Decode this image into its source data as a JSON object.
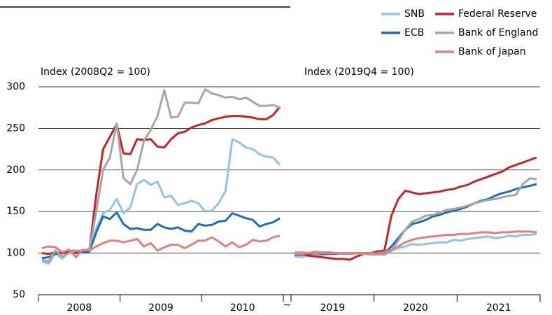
{
  "chart_data": [
    {
      "type": "line",
      "annotation": "Index (2008Q2 = 100)",
      "categories": [
        null,
        null,
        null,
        null,
        null,
        null,
        "2008",
        null,
        null,
        null,
        null,
        null,
        null,
        null,
        null,
        null,
        null,
        null,
        "2009",
        null,
        null,
        null,
        null,
        null,
        null,
        null,
        null,
        null,
        null,
        null,
        "2010",
        null,
        null,
        null,
        null,
        null
      ],
      "ylim": [
        50,
        300
      ],
      "yticks": [
        50,
        100,
        150,
        200,
        250,
        300
      ],
      "grid": true,
      "legend": "top-right",
      "series": [
        {
          "name": "SNB",
          "color": "#93c3e3",
          "values": [
            90,
            87,
            100,
            93,
            102,
            100,
            104,
            103,
            130,
            148,
            152,
            165,
            148,
            155,
            183,
            188,
            182,
            186,
            167,
            169,
            158,
            160,
            163,
            160,
            150,
            151,
            160,
            175,
            237,
            233,
            227,
            225,
            219,
            216,
            215,
            206
          ]
        },
        {
          "name": "ECB",
          "color": "#1f6db5",
          "values": [
            94,
            95,
            99,
            100,
            102,
            103,
            101,
            102,
            125,
            144,
            141,
            149,
            135,
            129,
            130,
            128,
            128,
            135,
            131,
            129,
            131,
            127,
            126,
            135,
            133,
            134,
            138,
            139,
            148,
            145,
            142,
            140,
            132,
            135,
            137,
            142
          ]
        },
        {
          "name": "Federal Reserve",
          "color": "#c0272d",
          "values": [
            100,
            99,
            101,
            100,
            101,
            100,
            103,
            104,
            170,
            225,
            240,
            255,
            220,
            219,
            237,
            236,
            237,
            228,
            227,
            237,
            244,
            246,
            251,
            254,
            256,
            260,
            262,
            264,
            265,
            265,
            264,
            263,
            261,
            261,
            266,
            276
          ]
        },
        {
          "name": "Bank of England",
          "color": "#a6a6a6",
          "values": [
            92,
            90,
            103,
            96,
            100,
            103,
            103,
            105,
            150,
            200,
            215,
            256,
            190,
            183,
            200,
            235,
            248,
            265,
            296,
            263,
            264,
            281,
            281,
            280,
            297,
            292,
            290,
            287,
            288,
            285,
            287,
            282,
            277,
            277,
            278,
            275
          ]
        },
        {
          "name": "Bank of Japan",
          "color": "#e08080",
          "values": [
            106,
            108,
            107,
            101,
            104,
            95,
            104,
            103,
            108,
            112,
            115,
            115,
            113,
            115,
            117,
            108,
            112,
            103,
            107,
            110,
            110,
            106,
            110,
            115,
            115,
            119,
            114,
            108,
            113,
            107,
            110,
            116,
            114,
            115,
            119,
            121
          ]
        }
      ]
    },
    {
      "type": "line",
      "annotation": "Index (2019Q4 = 100)",
      "axis_break": "~",
      "categories": [
        null,
        null,
        null,
        null,
        null,
        null,
        "2019",
        null,
        null,
        null,
        null,
        null,
        null,
        null,
        null,
        null,
        null,
        null,
        "2020",
        null,
        null,
        null,
        null,
        null,
        null,
        null,
        null,
        null,
        null,
        null,
        "2021",
        null,
        null,
        null,
        null,
        null
      ],
      "ylim": [
        50,
        300
      ],
      "yticks": [
        50,
        100,
        150,
        200,
        250,
        300
      ],
      "grid": true,
      "series": [
        {
          "color": "#93c3e3",
          "values": [
            96,
            95,
            97,
            98,
            98,
            99,
            99,
            100,
            100,
            100,
            99,
            98,
            98,
            99,
            103,
            106,
            108,
            111,
            110,
            111,
            112,
            113,
            113,
            116,
            115,
            117,
            118,
            119,
            120,
            118,
            119,
            121,
            120,
            122,
            122,
            123
          ]
        },
        {
          "color": "#1f6db5",
          "values": [
            98,
            98,
            99,
            100,
            99,
            99,
            99,
            100,
            100,
            100,
            100,
            100,
            99,
            100,
            108,
            118,
            128,
            135,
            137,
            140,
            144,
            146,
            149,
            151,
            153,
            156,
            160,
            163,
            165,
            169,
            172,
            174,
            177,
            179,
            181,
            183
          ]
        },
        {
          "color": "#c0272d",
          "values": [
            100,
            99,
            97,
            96,
            95,
            94,
            93,
            93,
            92,
            96,
            99,
            100,
            102,
            103,
            145,
            165,
            175,
            173,
            171,
            172,
            173,
            174,
            176,
            177,
            180,
            182,
            186,
            189,
            192,
            195,
            198,
            203,
            206,
            209,
            212,
            215
          ]
        },
        {
          "color": "#a6a6a6",
          "values": [
            101,
            101,
            100,
            102,
            101,
            101,
            100,
            100,
            100,
            100,
            99,
            100,
            99,
            98,
            103,
            115,
            128,
            138,
            141,
            145,
            146,
            149,
            152,
            153,
            155,
            157,
            160,
            162,
            164,
            165,
            167,
            169,
            170,
            183,
            190,
            189
          ]
        },
        {
          "color": "#e08080",
          "values": [
            99,
            99,
            100,
            100,
            100,
            100,
            100,
            99,
            99,
            100,
            100,
            99,
            100,
            101,
            104,
            108,
            113,
            116,
            118,
            119,
            120,
            121,
            122,
            122,
            123,
            123,
            124,
            125,
            125,
            124,
            125,
            125,
            126,
            126,
            126,
            125
          ]
        }
      ]
    }
  ]
}
